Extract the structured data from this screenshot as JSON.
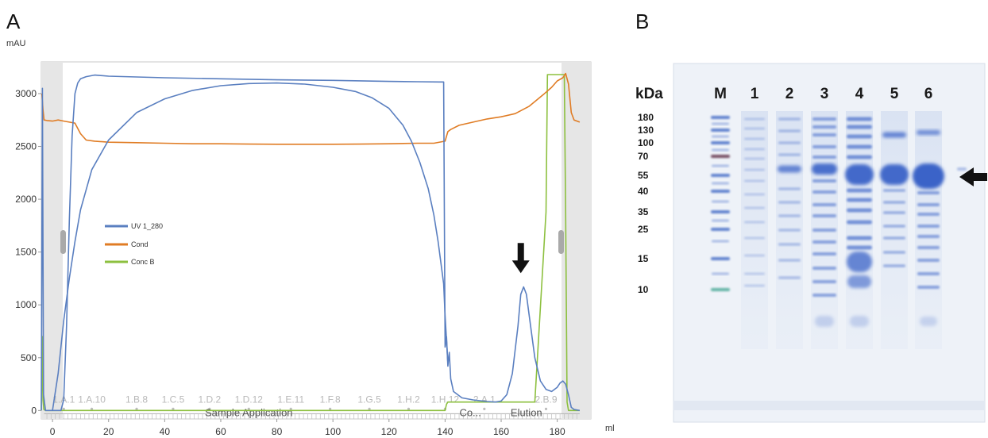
{
  "panel_a_label": "A",
  "panel_b_label": "B",
  "chart_data": [
    {
      "type": "line",
      "title": "",
      "ylabel": "mAU",
      "xlabel": "ml",
      "xlim": [
        -4,
        192
      ],
      "ylim": [
        -80,
        3300
      ],
      "x_ticks": [
        0,
        20,
        40,
        60,
        80,
        100,
        120,
        140,
        160,
        180
      ],
      "y_ticks": [
        0,
        500,
        1000,
        1500,
        2000,
        2500,
        3000
      ],
      "grid": false,
      "legend_position": "center-left",
      "series": [
        {
          "name": "UV 1_280",
          "color": "#5a7fc0",
          "x": [
            -4,
            -3.6,
            -3.2,
            -2.5,
            -1.5,
            -0.5,
            0.5,
            1.5,
            3,
            4,
            5,
            6,
            7,
            8,
            9,
            10,
            12,
            15,
            20,
            40,
            60,
            80,
            100,
            120,
            130,
            138,
            139.5,
            140,
            140.5,
            141,
            141.5,
            142,
            143,
            146,
            150,
            155,
            158,
            160,
            162,
            164,
            166,
            167,
            168,
            169,
            170,
            172,
            174,
            176,
            178,
            180,
            181,
            182,
            183,
            184,
            185,
            186,
            188
          ],
          "y": [
            0,
            3050,
            150,
            0,
            0,
            0,
            0,
            0,
            0,
            100,
            800,
            1800,
            2600,
            3000,
            3100,
            3140,
            3160,
            3175,
            3165,
            3150,
            3140,
            3130,
            3125,
            3115,
            3112,
            3110,
            3110,
            600,
            700,
            420,
            550,
            300,
            180,
            120,
            100,
            85,
            80,
            90,
            150,
            350,
            800,
            1100,
            1170,
            1100,
            900,
            500,
            280,
            200,
            180,
            220,
            260,
            280,
            250,
            150,
            30,
            10,
            0
          ]
        },
        {
          "name": "UV 1_280",
          "color": "#5a7fc0",
          "x": [
            0,
            2,
            4,
            6,
            8,
            10,
            14,
            20,
            30,
            40,
            50,
            60,
            70,
            80,
            90,
            100,
            108,
            114,
            120,
            125,
            128,
            131,
            134,
            136,
            137.5,
            138.5,
            139.5,
            140,
            141
          ],
          "y": [
            0,
            350,
            850,
            1250,
            1600,
            1900,
            2280,
            2560,
            2820,
            2950,
            3030,
            3075,
            3095,
            3100,
            3090,
            3060,
            3020,
            2960,
            2860,
            2700,
            2550,
            2350,
            2100,
            1850,
            1600,
            1400,
            1200,
            900,
            450
          ]
        },
        {
          "name": "Cond",
          "color": "#e07c24",
          "x": [
            -3.8,
            -3.4,
            -3,
            -2,
            0,
            2,
            4,
            6,
            8,
            10,
            12,
            15,
            20,
            30,
            40,
            50,
            60,
            70,
            80,
            90,
            100,
            110,
            120,
            130,
            136,
            140,
            141,
            142,
            145,
            150,
            155,
            160,
            165,
            170,
            175,
            178,
            180,
            182,
            183,
            184,
            185,
            186,
            188
          ],
          "y": [
            3000,
            2850,
            2750,
            2745,
            2740,
            2750,
            2740,
            2730,
            2720,
            2620,
            2560,
            2550,
            2540,
            2535,
            2530,
            2525,
            2525,
            2522,
            2520,
            2520,
            2520,
            2522,
            2525,
            2530,
            2530,
            2550,
            2640,
            2660,
            2700,
            2730,
            2760,
            2780,
            2810,
            2880,
            2990,
            3060,
            3120,
            3150,
            3190,
            3090,
            2820,
            2750,
            2730
          ]
        },
        {
          "name": "Conc B",
          "color": "#8dc03f",
          "x": [
            -4,
            -3.6,
            -3.4,
            -3.1,
            -2.5,
            0,
            20,
            40,
            60,
            80,
            100,
            120,
            140,
            140.5,
            141,
            145,
            155,
            156,
            157,
            158,
            160,
            170,
            172,
            176,
            176.5,
            177,
            180,
            182,
            182.5,
            183,
            183.5,
            184,
            186,
            188
          ],
          "y": [
            0,
            700,
            100,
            10,
            0,
            0,
            0,
            0,
            0,
            0,
            0,
            0,
            0,
            60,
            80,
            80,
            80,
            80,
            80,
            80,
            80,
            80,
            80,
            1880,
            3180,
            3180,
            3180,
            3180,
            3180,
            1880,
            80,
            0,
            0,
            0
          ]
        }
      ],
      "fraction_labels": [
        "1.A.1",
        "1.A.10",
        "1.B.8",
        "1.C.5",
        "1.D.2",
        "1.D.12",
        "1.E.11",
        "1.F.8",
        "1.G.5",
        "1.H.2",
        "1.H.12",
        "2.A.1",
        "2.B.9"
      ],
      "fraction_label_x": [
        4,
        14,
        30,
        43,
        56,
        70,
        85,
        99,
        113,
        127,
        140,
        154,
        176
      ],
      "phase_labels": [
        "Sample Application",
        "Co...",
        "Elution"
      ],
      "phase_label_x": [
        70,
        149,
        169
      ],
      "annotations": [
        {
          "type": "arrow-down",
          "x": 167,
          "y": 1300
        }
      ]
    },
    {
      "type": "table",
      "title": "",
      "axis_title": "kDa",
      "lane_labels": [
        "M",
        "1",
        "2",
        "3",
        "4",
        "5",
        "6"
      ],
      "marker_sizes_kda": [
        "180",
        "130",
        "100",
        "70",
        "55",
        "40",
        "35",
        "25",
        "15",
        "10"
      ],
      "annotations": [
        {
          "type": "arrow-left",
          "target": "55 kDa band, lane 6"
        }
      ]
    }
  ],
  "colors": {
    "uv": "#5a7fc0",
    "cond": "#e07c24",
    "concb": "#8dc03f",
    "gel_blue": "#3a63c8",
    "gel_bg": "#eef2f8"
  }
}
